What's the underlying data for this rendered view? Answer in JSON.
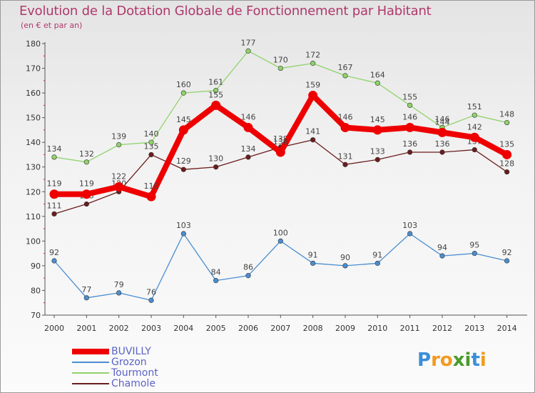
{
  "chart_data": {
    "type": "line",
    "title": "Evolution de la Dotation Globale de Fonctionnement par Habitant",
    "subtitle": "(en € et par an)",
    "categories": [
      "2000",
      "2001",
      "2002",
      "2003",
      "2004",
      "2005",
      "2006",
      "2007",
      "2008",
      "2009",
      "2010",
      "2011",
      "2012",
      "2013",
      "2014"
    ],
    "ylim": [
      70,
      180
    ],
    "yticks": [
      70,
      80,
      90,
      100,
      110,
      120,
      130,
      140,
      150,
      160,
      170,
      180
    ],
    "grid": false,
    "legend_position": "bottom-left",
    "series": [
      {
        "name": "Chamole",
        "color": "#6b1c1c",
        "values": [
          111,
          115,
          120,
          135,
          129,
          130,
          134,
          138,
          141,
          131,
          133,
          136,
          136,
          137,
          128
        ]
      },
      {
        "name": "Tourmont",
        "color": "#8fd36a",
        "values": [
          134,
          132,
          139,
          140,
          160,
          161,
          177,
          170,
          172,
          167,
          164,
          155,
          146,
          151,
          148
        ]
      },
      {
        "name": "Grozon",
        "color": "#4a8ed0",
        "values": [
          92,
          77,
          79,
          76,
          103,
          84,
          86,
          100,
          91,
          90,
          91,
          103,
          94,
          95,
          92
        ]
      },
      {
        "name": "BUVILLY",
        "color": "#ee0000",
        "values": [
          119,
          119,
          122,
          118,
          145,
          155,
          146,
          136,
          159,
          146,
          145,
          146,
          144,
          142,
          135
        ]
      }
    ]
  },
  "legend": {
    "items": [
      {
        "label": "BUVILLY",
        "color": "#ee0000"
      },
      {
        "label": "Grozon",
        "color": "#4a8ed0"
      },
      {
        "label": "Tourmont",
        "color": "#8fd36a"
      },
      {
        "label": "Chamole",
        "color": "#6b1c1c"
      }
    ]
  },
  "logo": {
    "letters": [
      "P",
      "r",
      "o",
      "x",
      "i",
      "t",
      "i"
    ],
    "colors": [
      "#3b8fd8",
      "#f39a1f",
      "#f39a1f",
      "#4a9a2a",
      "#4a9a2a",
      "#3b8fd8",
      "#f39a1f"
    ]
  }
}
